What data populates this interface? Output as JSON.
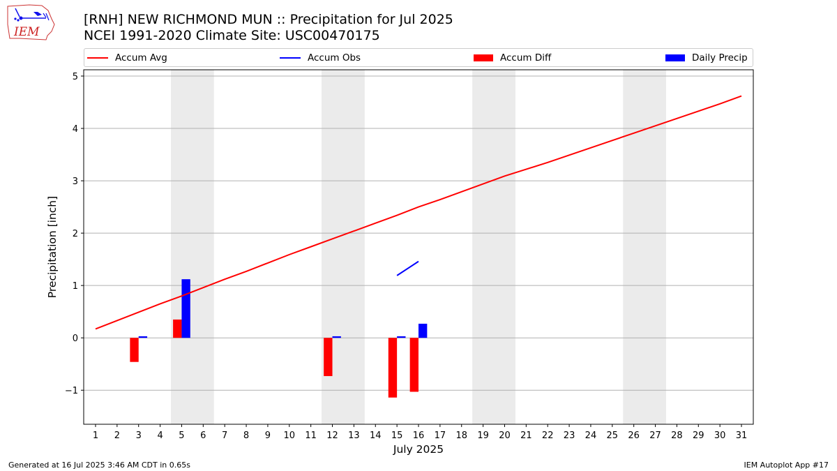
{
  "header": {
    "title_line1": "[RNH] NEW RICHMOND MUN :: Precipitation for Jul 2025",
    "title_line2": "NCEI 1991-2020 Climate Site: USC00470175"
  },
  "logo": {
    "text": "IEM"
  },
  "legend": {
    "items": [
      {
        "label": "Accum Avg",
        "color": "#ff0000",
        "kind": "line"
      },
      {
        "label": "Accum Obs",
        "color": "#0000ff",
        "kind": "line"
      },
      {
        "label": "Accum Diff",
        "color": "#ff0000",
        "kind": "box"
      },
      {
        "label": "Daily Precip",
        "color": "#0000ff",
        "kind": "box"
      }
    ]
  },
  "footer": {
    "left": "Generated at 16 Jul 2025 3:46 AM CDT in 0.65s",
    "right": "IEM Autoplot App #17"
  },
  "chart_data": {
    "type": "bar",
    "xlabel": "July 2025",
    "ylabel": "Precipitation [inch]",
    "ylim": [
      -1.65,
      5.12
    ],
    "yticks": [
      -1,
      0,
      1,
      2,
      3,
      4,
      5
    ],
    "ytick_labels": [
      "−1",
      "0",
      "1",
      "2",
      "3",
      "4",
      "5"
    ],
    "x": [
      1,
      2,
      3,
      4,
      5,
      6,
      7,
      8,
      9,
      10,
      11,
      12,
      13,
      14,
      15,
      16,
      17,
      18,
      19,
      20,
      21,
      22,
      23,
      24,
      25,
      26,
      27,
      28,
      29,
      30,
      31
    ],
    "grid": true,
    "weekend_shading": [
      [
        5,
        6
      ],
      [
        12,
        13
      ],
      [
        19,
        20
      ],
      [
        26,
        27
      ]
    ],
    "series": [
      {
        "name": "Accum Avg",
        "type": "line",
        "color": "#ff0000",
        "x": [
          1,
          2,
          3,
          4,
          5,
          6,
          7,
          8,
          9,
          10,
          11,
          12,
          13,
          14,
          15,
          16,
          17,
          18,
          19,
          20,
          21,
          22,
          23,
          24,
          25,
          26,
          27,
          28,
          29,
          30,
          31
        ],
        "values": [
          0.17,
          0.33,
          0.49,
          0.65,
          0.8,
          0.96,
          1.12,
          1.27,
          1.43,
          1.59,
          1.74,
          1.89,
          2.04,
          2.19,
          2.34,
          2.5,
          2.64,
          2.79,
          2.94,
          3.09,
          3.22,
          3.35,
          3.49,
          3.63,
          3.77,
          3.91,
          4.05,
          4.19,
          4.33,
          4.47,
          4.62
        ]
      },
      {
        "name": "Accum Obs",
        "type": "line",
        "color": "#0000ff",
        "x": [
          15,
          16
        ],
        "values": [
          1.19,
          1.46
        ]
      },
      {
        "name": "Accum Diff",
        "type": "bar",
        "color": "#ff0000",
        "x": [
          3,
          5,
          12,
          15,
          16
        ],
        "values": [
          -0.46,
          0.35,
          -0.73,
          -1.14,
          -1.03
        ]
      },
      {
        "name": "Daily Precip",
        "type": "bar",
        "color": "#0000ff",
        "x": [
          3,
          5,
          12,
          15,
          16
        ],
        "values": [
          0.03,
          1.12,
          0.03,
          0.03,
          0.27
        ]
      }
    ]
  }
}
